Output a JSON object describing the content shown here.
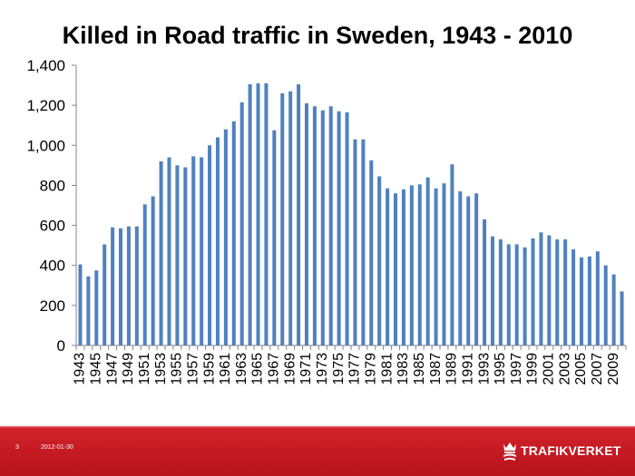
{
  "colors": {
    "bar": "#4f81bd",
    "axis": "#868686",
    "footer_dark": "#b5121b",
    "footer_light": "#d4232c"
  },
  "chart_data": {
    "type": "bar",
    "title": "Killed in Road traffic in Sweden, 1943 - 2010",
    "xlabel": "",
    "ylabel": "",
    "ylim": [
      0,
      1400
    ],
    "yticks": [
      0,
      200,
      400,
      600,
      800,
      1000,
      1200,
      1400
    ],
    "ytick_labels": [
      "0",
      "200",
      "400",
      "600",
      "800",
      "1,000",
      "1,200",
      "1,400"
    ],
    "grid": false,
    "categories": [
      "1943",
      "1944",
      "1945",
      "1946",
      "1947",
      "1948",
      "1949",
      "1950",
      "1951",
      "1952",
      "1953",
      "1954",
      "1955",
      "1956",
      "1957",
      "1958",
      "1959",
      "1960",
      "1961",
      "1962",
      "1963",
      "1964",
      "1965",
      "1966",
      "1967",
      "1968",
      "1969",
      "1970",
      "1971",
      "1972",
      "1973",
      "1974",
      "1975",
      "1976",
      "1977",
      "1978",
      "1979",
      "1980",
      "1981",
      "1982",
      "1983",
      "1984",
      "1985",
      "1986",
      "1987",
      "1988",
      "1989",
      "1990",
      "1991",
      "1992",
      "1993",
      "1994",
      "1995",
      "1996",
      "1997",
      "1998",
      "1999",
      "2000",
      "2001",
      "2002",
      "2003",
      "2004",
      "2005",
      "2006",
      "2007",
      "2008",
      "2009",
      "2010"
    ],
    "xtick_labels": [
      "1943",
      "1945",
      "1947",
      "1949",
      "1951",
      "1953",
      "1955",
      "1957",
      "1959",
      "1961",
      "1963",
      "1965",
      "1967",
      "1969",
      "1971",
      "1973",
      "1975",
      "1977",
      "1979",
      "1981",
      "1983",
      "1985",
      "1987",
      "1989",
      "1991",
      "1993",
      "1995",
      "1997",
      "1999",
      "2001",
      "2003",
      "2005",
      "2007",
      "2009"
    ],
    "values": [
      405,
      345,
      375,
      505,
      590,
      585,
      595,
      595,
      705,
      745,
      920,
      940,
      900,
      890,
      945,
      940,
      1000,
      1040,
      1080,
      1120,
      1215,
      1305,
      1310,
      1310,
      1075,
      1260,
      1270,
      1305,
      1210,
      1195,
      1175,
      1195,
      1170,
      1165,
      1030,
      1030,
      925,
      845,
      785,
      760,
      780,
      800,
      805,
      840,
      785,
      810,
      905,
      770,
      745,
      760,
      630,
      545,
      530,
      505,
      505,
      490,
      535,
      565,
      550,
      530,
      530,
      480,
      440,
      445,
      470,
      400,
      355,
      270
    ]
  },
  "footer": {
    "slide_number": "3",
    "date": "2012-01-30",
    "logo_text": "TRAFIKVERKET"
  }
}
